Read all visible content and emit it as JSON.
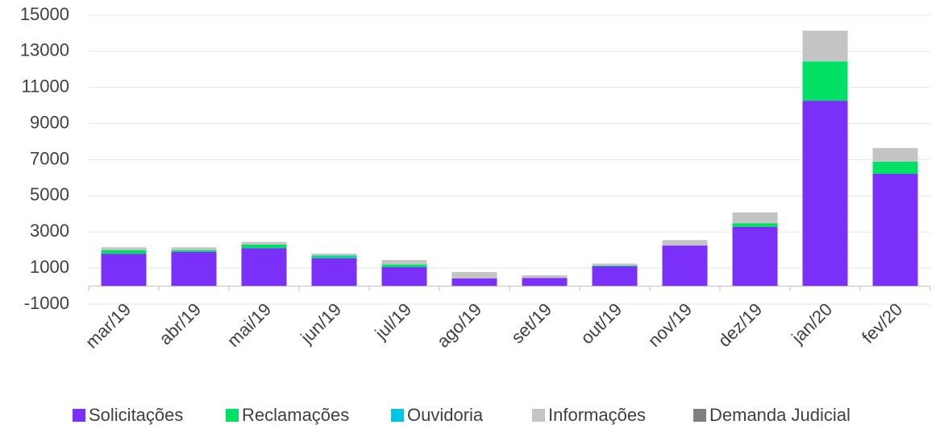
{
  "chart_data": {
    "type": "stacked_bar",
    "categories": [
      "mar/19",
      "abr/19",
      "mai/19",
      "jun/19",
      "jul/19",
      "ago/19",
      "set/19",
      "out/19",
      "nov/19",
      "dez/19",
      "jan/20",
      "fev/20"
    ],
    "series": [
      {
        "name": "Solicitações",
        "color": "#7b30fa",
        "values": [
          1800,
          1900,
          2100,
          1550,
          1050,
          430,
          450,
          1100,
          2250,
          3280,
          10270,
          6220
        ]
      },
      {
        "name": "Reclamações",
        "color": "#00e065",
        "values": [
          200,
          100,
          200,
          100,
          150,
          0,
          0,
          50,
          0,
          200,
          2180,
          670
        ]
      },
      {
        "name": "Ouvidoria",
        "color": "#00c5e3",
        "values": [
          0,
          0,
          0,
          50,
          0,
          0,
          0,
          0,
          0,
          0,
          0,
          0
        ]
      },
      {
        "name": "Informações",
        "color": "#c4c4c4",
        "values": [
          150,
          150,
          150,
          100,
          250,
          350,
          150,
          100,
          300,
          600,
          1700,
          760
        ]
      },
      {
        "name": "Demanda Judicial",
        "color": "#808080",
        "values": [
          0,
          0,
          0,
          0,
          0,
          0,
          0,
          0,
          0,
          0,
          0,
          0
        ]
      }
    ],
    "ylim": [
      -1000,
      15000
    ],
    "yticks": [
      -1000,
      1000,
      3000,
      5000,
      7000,
      9000,
      11000,
      13000,
      15000
    ],
    "grid": true,
    "legend": "bottom"
  }
}
